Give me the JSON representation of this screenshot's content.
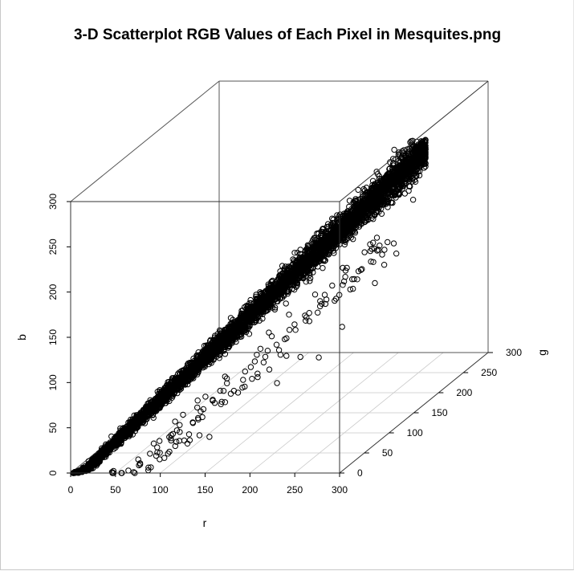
{
  "chart_data": {
    "type": "scatter",
    "title": "3-D Scatterplot RGB Values of Each Pixel in Mesquites.png",
    "xlabel": "r",
    "ylabel": "g",
    "zlabel": "b",
    "xlim": [
      0,
      300
    ],
    "ylim": [
      0,
      300
    ],
    "zlim": [
      0,
      300
    ],
    "x_ticks": [
      "0",
      "50",
      "100",
      "150",
      "200",
      "250",
      "300"
    ],
    "y_ticks": [
      "0",
      "50",
      "100",
      "150",
      "200",
      "250",
      "300"
    ],
    "z_ticks": [
      "0",
      "50",
      "100",
      "150",
      "200",
      "250",
      "300"
    ],
    "grid": true,
    "marker": "open-circle",
    "point_color": "#000000",
    "trend": "dense band of points running from (0,0,0) to about (255,255,255)",
    "outliers": [
      {
        "r": 95,
        "g": 55,
        "b": 40
      },
      {
        "r": 110,
        "g": 40,
        "b": 25
      },
      {
        "r": 130,
        "g": 45,
        "b": 20
      },
      {
        "r": 80,
        "g": 30,
        "b": 15
      },
      {
        "r": 150,
        "g": 80,
        "b": 60
      },
      {
        "r": 190,
        "g": 120,
        "b": 75
      },
      {
        "r": 220,
        "g": 150,
        "b": 95
      },
      {
        "r": 250,
        "g": 200,
        "b": 165
      },
      {
        "r": 255,
        "g": 230,
        "b": 200
      },
      {
        "r": 240,
        "g": 180,
        "b": 130
      },
      {
        "r": 175,
        "g": 100,
        "b": 55
      },
      {
        "r": 205,
        "g": 130,
        "b": 70
      }
    ]
  }
}
